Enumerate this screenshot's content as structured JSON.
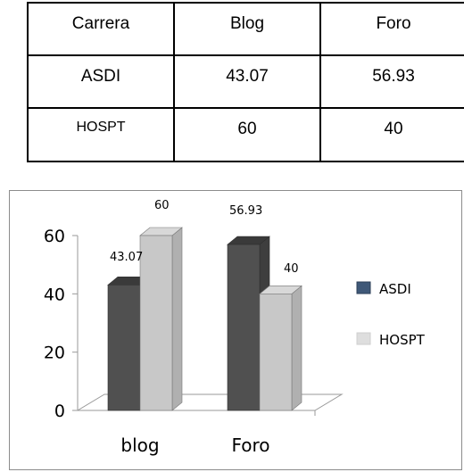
{
  "table": {
    "headers": [
      "Carrera",
      "Blog",
      "Foro"
    ],
    "rows": [
      [
        "ASDI",
        "43.07",
        "56.93"
      ],
      [
        "HOSPT",
        "60",
        "40"
      ]
    ]
  },
  "chart_data": {
    "type": "bar",
    "style": "3d-clustered-column",
    "categories": [
      "blog",
      "Foro"
    ],
    "series": [
      {
        "name": "ASDI",
        "values": [
          43.07,
          56.93
        ],
        "color": "#505050"
      },
      {
        "name": "HOSPT",
        "values": [
          60,
          40
        ],
        "color": "#c8c8c8"
      }
    ],
    "data_labels": [
      [
        "43.07",
        "56.93"
      ],
      [
        "60",
        "40"
      ]
    ],
    "y_ticks": [
      "0",
      "20",
      "40",
      "60"
    ],
    "ylim": [
      0,
      60
    ],
    "grid": false,
    "legend_position": "right",
    "title": "",
    "xlabel": "",
    "ylabel": ""
  }
}
